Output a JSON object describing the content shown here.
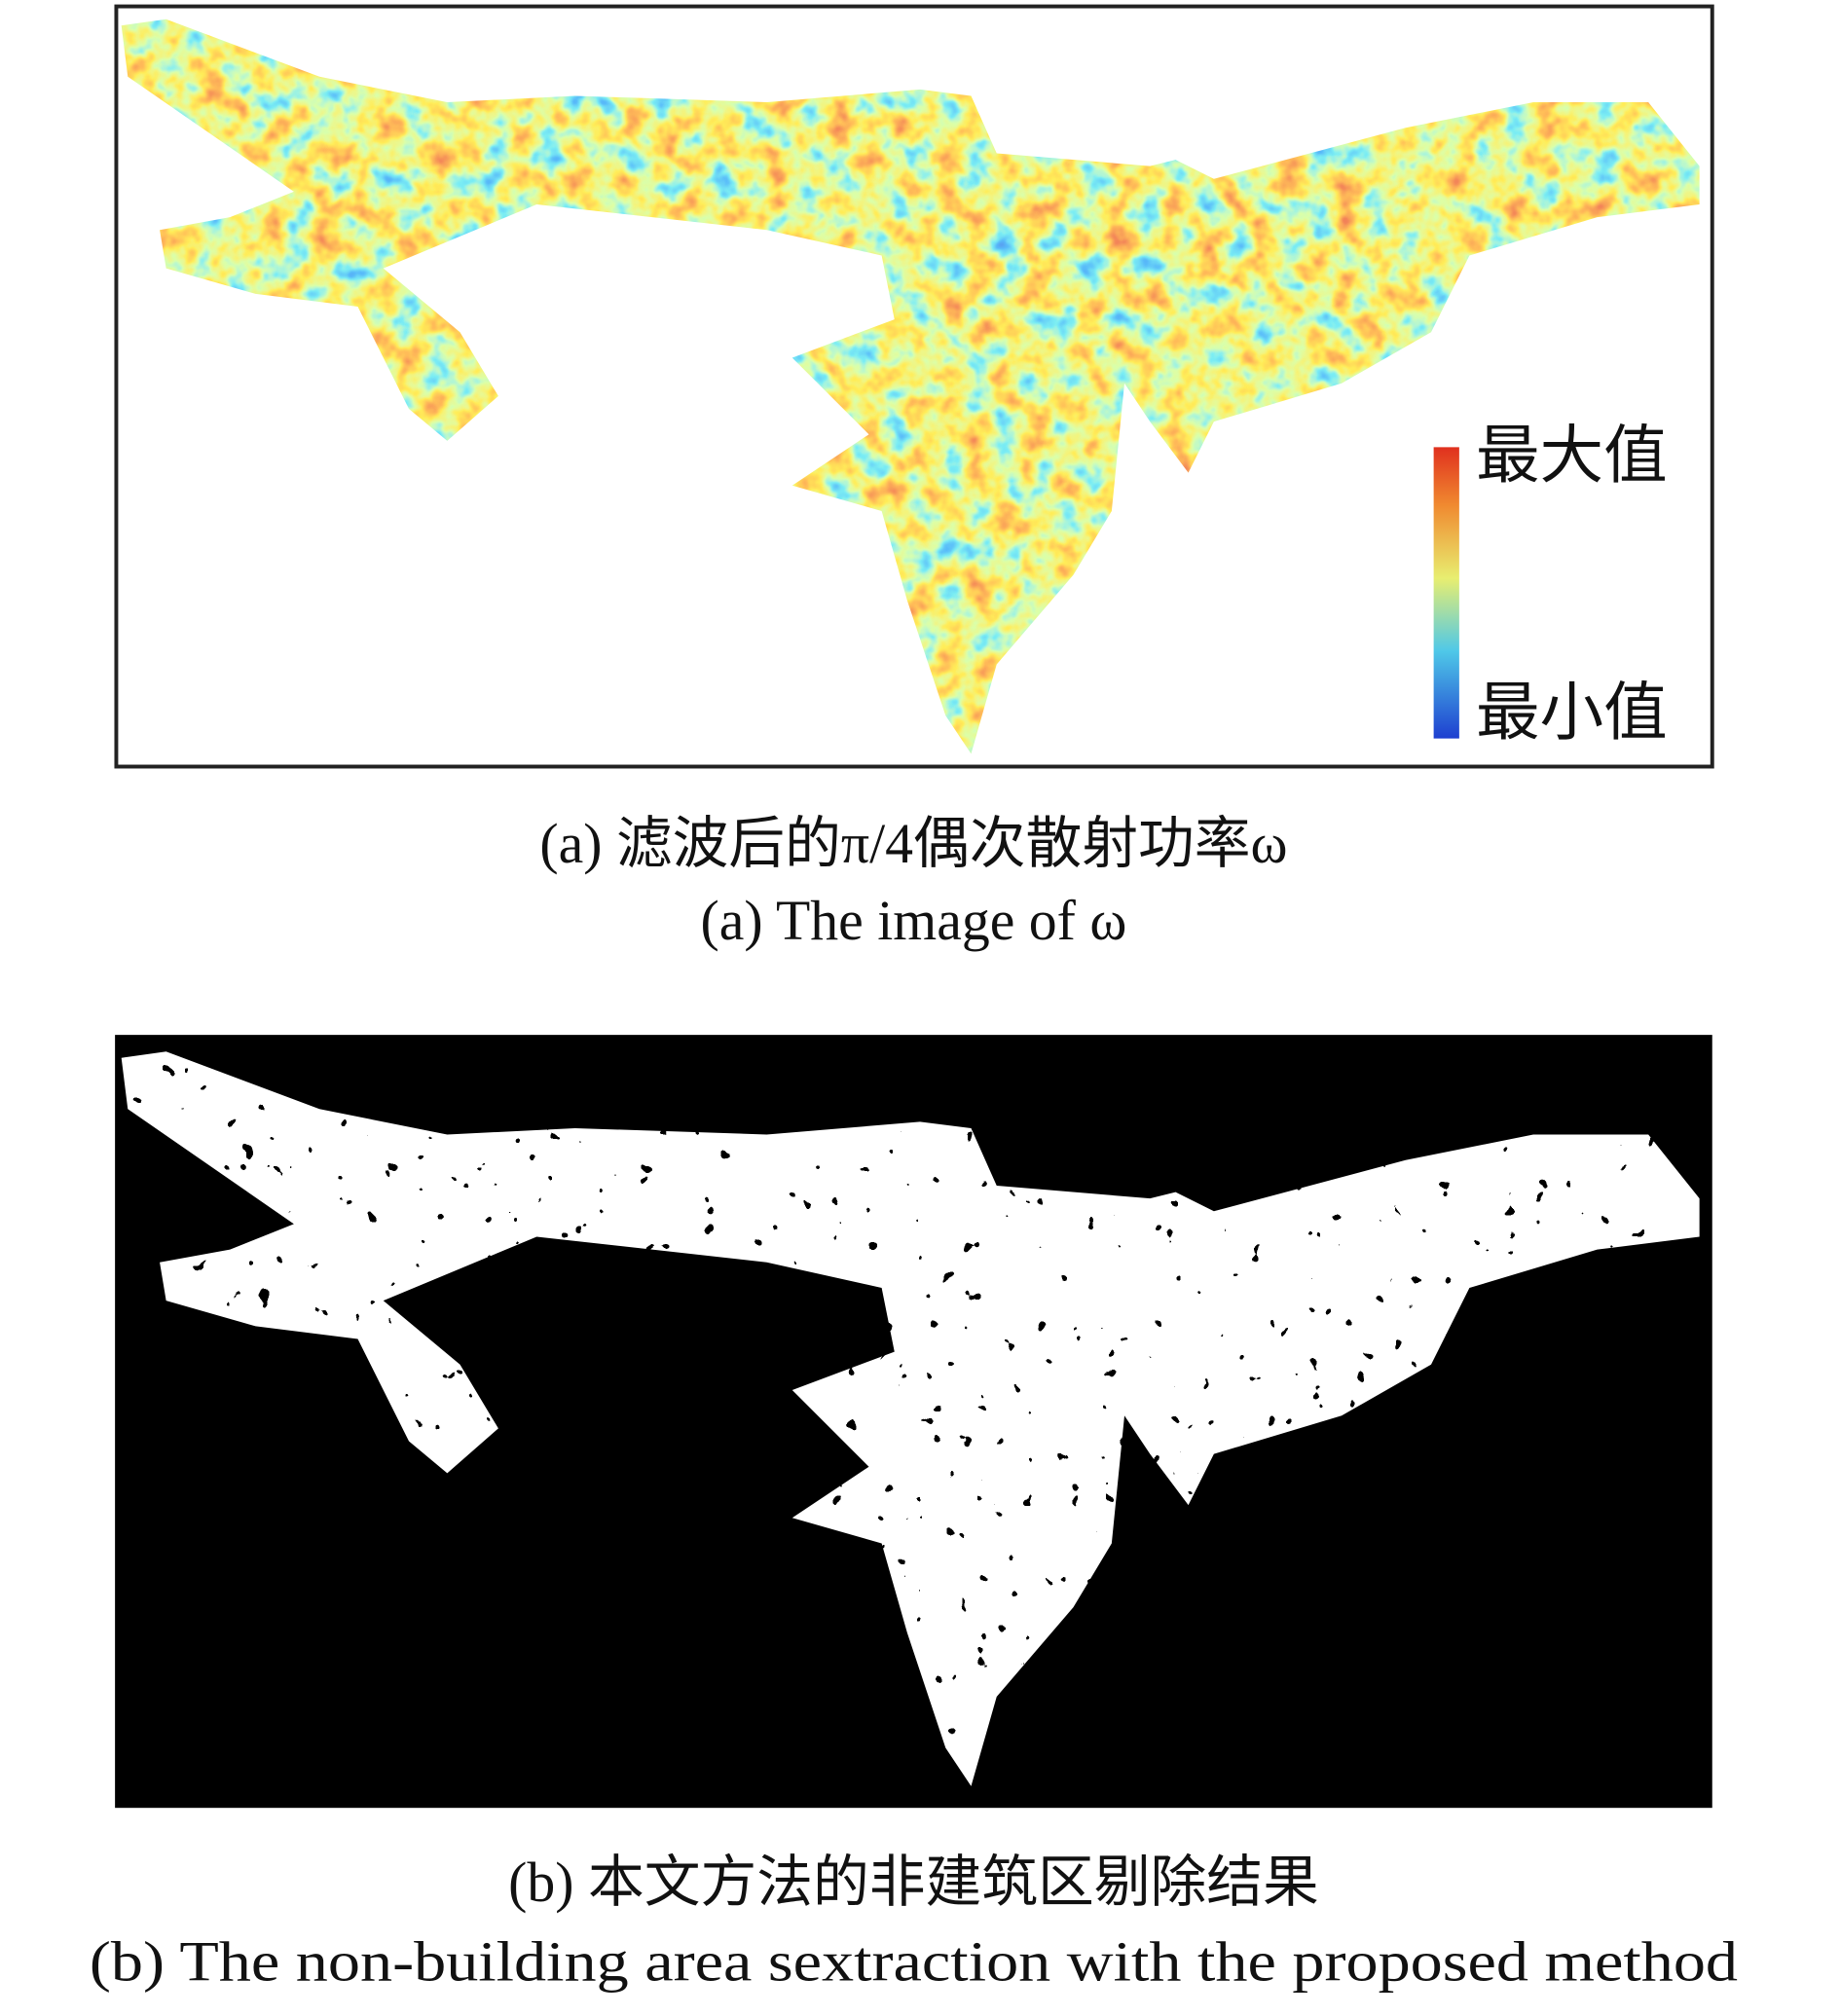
{
  "panel_a": {
    "colorbar": {
      "max_label": "最大值",
      "min_label": "最小值"
    },
    "caption_zh": "(a) 滤波后的π/4偶次散射功率ω",
    "caption_en": "(a) The image of ω"
  },
  "panel_b": {
    "caption_zh": "(b) 本文方法的非建筑区剔除结果",
    "caption_en": "(b) The non-building area sextraction with the proposed method"
  }
}
